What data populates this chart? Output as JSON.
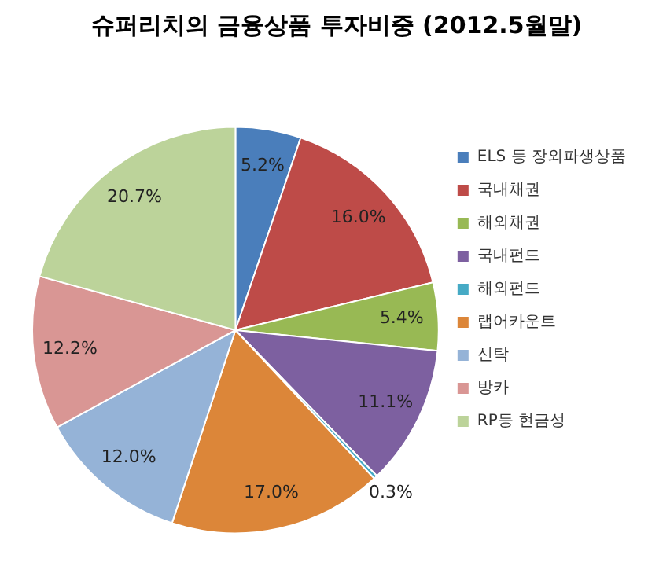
{
  "chart_data": {
    "type": "pie",
    "title": "슈퍼리치의 금융상품 투자비중 (2012.5월말)",
    "categories": [
      "ELS 등 장외파생상품",
      "국내채권",
      "해외채권",
      "국내펀드",
      "해외펀드",
      "랩어카운트",
      "신탁",
      "방카",
      "RP등 현금성"
    ],
    "values": [
      5.2,
      16.0,
      5.4,
      11.1,
      0.3,
      17.0,
      12.0,
      12.2,
      20.7
    ],
    "value_labels": [
      "5.2%",
      "16.0%",
      "5.4%",
      "11.1%",
      "0.3%",
      "17.0%",
      "12.0%",
      "12.2%",
      "20.7%"
    ],
    "colors": [
      "#4a7ebb",
      "#be4b48",
      "#98b954",
      "#7d60a0",
      "#46aac5",
      "#dc8639",
      "#95b3d7",
      "#d99694",
      "#bcd39a"
    ],
    "legend": "right"
  }
}
